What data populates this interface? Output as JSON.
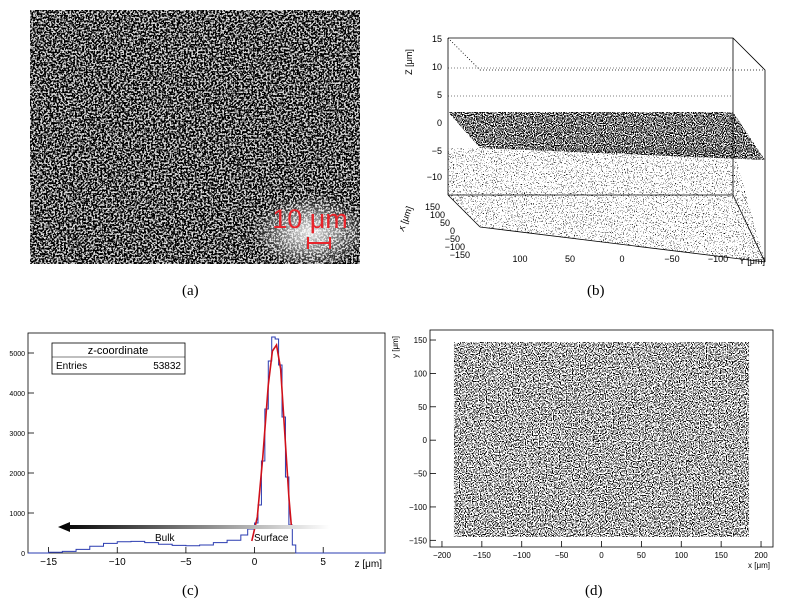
{
  "panels": {
    "a": {
      "caption": "(a)",
      "scale_bar_label": "10 μm",
      "scale_bar_color": "#e8242b"
    },
    "b": {
      "caption": "(b)",
      "axis_z_label": "Z [μm]",
      "axis_x_label": "X [μm]",
      "axis_y_label": "Y [μm]",
      "z_ticks": [
        "15",
        "10",
        "5",
        "0",
        "−5",
        "−10"
      ],
      "x_ticks": [
        "150",
        "100",
        "50",
        "0",
        "−50",
        "−100",
        "−150"
      ],
      "y_ticks": [
        "100",
        "50",
        "0",
        "−50",
        "−100"
      ]
    },
    "c": {
      "caption": "(c)",
      "stats_title": "z-coordinate",
      "stats_entries_label": "Entries",
      "stats_entries_value": "53832",
      "bulk_label": "Bulk",
      "surface_label": "Surface",
      "xlabel": "z [μm]",
      "histogram_color": "#2a3bb0",
      "fit_color": "#d0101a"
    },
    "d": {
      "caption": "(d)",
      "xlabel": "x [μm]",
      "ylabel": "y [μm]"
    }
  },
  "chart_data": [
    {
      "type": "area",
      "panel": "c",
      "title": "z-coordinate",
      "xlabel": "z [μm]",
      "ylabel": "",
      "xlim": [
        -16.5,
        9.5
      ],
      "ylim": [
        0,
        5500
      ],
      "x_ticks": [
        -15,
        -10,
        -5,
        0,
        5
      ],
      "y_ticks": [
        0,
        1000,
        2000,
        3000,
        4000,
        5000
      ],
      "x": [
        -16.5,
        -15,
        -14,
        -13,
        -12,
        -11,
        -10,
        -9,
        -8,
        -7,
        -6,
        -5,
        -4,
        -3,
        -2,
        -1,
        -0.5,
        0,
        0.25,
        0.5,
        0.75,
        1,
        1.25,
        1.5,
        1.75,
        2,
        2.25,
        2.5,
        2.75,
        3,
        9.5
      ],
      "values": [
        0,
        20,
        40,
        90,
        170,
        240,
        280,
        290,
        260,
        220,
        190,
        180,
        200,
        260,
        320,
        450,
        600,
        750,
        1200,
        2300,
        3600,
        4800,
        5400,
        5350,
        4700,
        3400,
        1900,
        700,
        200,
        0,
        0
      ],
      "fit_x": [
        -0.2,
        0.2,
        0.6,
        1.0,
        1.3,
        1.6,
        1.9,
        2.2,
        2.5,
        2.7
      ],
      "fit_y": [
        300,
        900,
        2400,
        4200,
        5050,
        5200,
        4600,
        3000,
        1400,
        600
      ]
    },
    {
      "type": "scatter",
      "panel": "d",
      "xlabel": "x [μm]",
      "ylabel": "y [μm]",
      "xlim": [
        -215,
        215
      ],
      "ylim": [
        -160,
        165
      ],
      "x_ticks": [
        -200,
        -150,
        -100,
        -50,
        0,
        50,
        100,
        150,
        200
      ],
      "y_ticks": [
        -150,
        -100,
        -50,
        0,
        50,
        100,
        150
      ],
      "point_region": {
        "x": [
          -185,
          185
        ],
        "y": [
          -145,
          147
        ]
      }
    }
  ]
}
